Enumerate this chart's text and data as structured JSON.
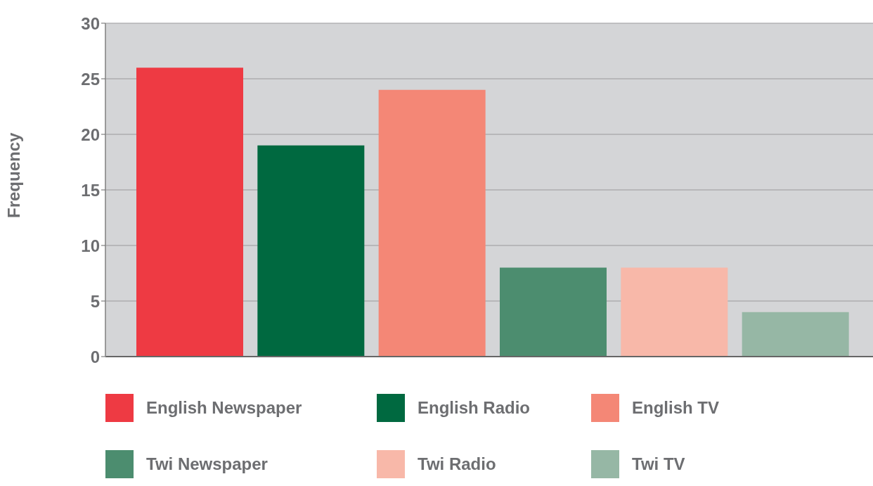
{
  "chart_data": {
    "type": "bar",
    "ylabel": "Frequency",
    "categories": [
      null,
      null,
      null,
      null,
      null,
      null
    ],
    "series": [
      {
        "name": "English Newspaper",
        "color": "#ee3a43",
        "values": [
          26,
          null,
          null,
          null,
          null,
          null
        ]
      },
      {
        "name": "English Radio",
        "color": "#006940",
        "values": [
          null,
          19,
          null,
          null,
          null,
          null
        ]
      },
      {
        "name": "English TV",
        "color": "#f48776",
        "values": [
          null,
          null,
          24,
          null,
          null,
          null
        ]
      },
      {
        "name": "Twi Newspaper",
        "color": "#4c8d6f",
        "values": [
          null,
          null,
          null,
          8,
          null,
          null
        ]
      },
      {
        "name": "Twi Radio",
        "color": "#f8b8a9",
        "values": [
          null,
          null,
          null,
          null,
          8,
          null
        ]
      },
      {
        "name": "Twi TV",
        "color": "#96b7a5",
        "values": [
          null,
          null,
          null,
          null,
          null,
          4
        ]
      }
    ],
    "ylim": [
      0,
      30
    ],
    "yticks": [
      0,
      5,
      10,
      15,
      20,
      25,
      30
    ],
    "grid": "y",
    "legend": "bottom"
  }
}
